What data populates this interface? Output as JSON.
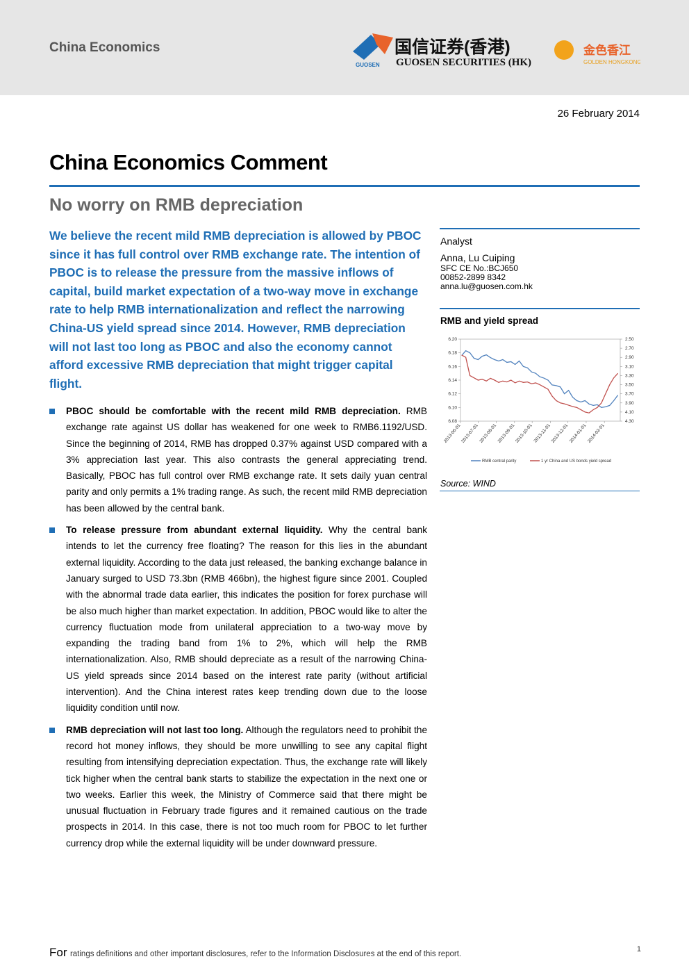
{
  "header": {
    "section": "China Economics",
    "logo_cn": "国信证券(香港)",
    "logo_en": "GUOSEN SECURITIES (HK)",
    "logo_mark": "GUOSEN",
    "partner_cn": "金色香江",
    "partner_en": "GOLDEN HONGKONG"
  },
  "date": "26 February 2014",
  "title": "China Economics Comment",
  "subtitle": "No worry on RMB depreciation",
  "summary": "We believe the recent mild RMB depreciation is allowed by PBOC since it has full control over RMB exchange rate. The intention of PBOC is to release the pressure from the massive inflows of capital, build market expectation of a two-way move in exchange rate to help RMB internationalization and reflect the narrowing China-US yield spread since 2014. However, RMB depreciation will not last too long as PBOC and also the economy cannot afford excessive RMB depreciation that might trigger capital flight.",
  "bullets": [
    {
      "lead": "PBOC should be comfortable with the recent mild RMB depreciation.",
      "text": "RMB exchange rate against US dollar has weakened for one week to RMB6.1192/USD. Since the beginning of 2014, RMB has dropped 0.37% against USD compared with a 3% appreciation last year. This also contrasts the general appreciating trend. Basically, PBOC has full control over RMB exchange rate. It sets daily yuan central parity and only permits a 1% trading range. As such, the recent mild RMB depreciation has been allowed by the central bank."
    },
    {
      "lead": "To release pressure from abundant external liquidity.",
      "text": "Why the central bank intends to let the currency free floating? The reason for this lies in the abundant external liquidity. According to the data just released, the banking exchange balance in January surged to USD 73.3bn (RMB 466bn), the highest figure since 2001. Coupled with the abnormal trade data earlier, this indicates the position for forex purchase will be also much higher than market expectation. In addition, PBOC would like to alter the currency fluctuation mode from unilateral appreciation to a two-way move by expanding the trading band from 1% to 2%, which will help the RMB internationalization. Also, RMB should depreciate as a result of the narrowing China-US yield spreads since 2014 based on the interest rate parity (without artificial intervention). And the China interest rates keep trending down due to the loose liquidity condition until now."
    },
    {
      "lead": "RMB depreciation will not last too long.",
      "text": "Although the regulators need to prohibit the record hot money inflows, they should be more unwilling to see any capital flight resulting from intensifying depreciation expectation. Thus, the exchange rate will likely tick higher when the central bank starts to stabilize the expectation in the next one or two weeks. Earlier this week, the Ministry of Commerce said that there might be unusual fluctuation in February trade figures and it remained cautious on the trade prospects in 2014. In this case, there is not too much room for PBOC to let further currency drop while the external liquidity will be under downward pressure."
    }
  ],
  "sidebar": {
    "heading": "Analyst",
    "name": "Anna, Lu Cuiping",
    "sfc": "SFC CE No.:BCJ650",
    "phone": "00852-2899 8342",
    "email": "anna.lu@guosen.com.hk"
  },
  "chart_data": {
    "type": "line",
    "title": "RMB and yield spread",
    "source": "Source: WIND",
    "x": [
      "2013-06-03",
      "2013-06-10",
      "2013-06-17",
      "2013-06-24",
      "2013-07-01",
      "2013-07-08",
      "2013-07-15",
      "2013-07-22",
      "2013-07-29",
      "2013-08-05",
      "2013-08-12",
      "2013-08-19",
      "2013-08-26",
      "2013-09-02",
      "2013-09-09",
      "2013-09-16",
      "2013-09-23",
      "2013-09-30",
      "2013-10-07",
      "2013-10-14",
      "2013-10-21",
      "2013-10-28",
      "2013-11-04",
      "2013-11-11",
      "2013-11-18",
      "2013-11-25",
      "2013-12-02",
      "2013-12-09",
      "2013-12-16",
      "2013-12-23",
      "2013-12-30",
      "2014-01-06",
      "2014-01-13",
      "2014-01-20",
      "2014-01-27",
      "2014-02-03",
      "2014-02-10",
      "2014-02-17",
      "2014-02-24"
    ],
    "series": [
      {
        "name": "RMB central parity",
        "color": "#4f81bd",
        "values": [
          6.176,
          6.183,
          6.18,
          6.172,
          6.17,
          6.175,
          6.177,
          6.173,
          6.17,
          6.168,
          6.17,
          6.166,
          6.167,
          6.163,
          6.168,
          6.16,
          6.158,
          6.152,
          6.15,
          6.145,
          6.143,
          6.14,
          6.133,
          6.132,
          6.13,
          6.12,
          6.125,
          6.115,
          6.11,
          6.108,
          6.11,
          6.105,
          6.103,
          6.104,
          6.1,
          6.101,
          6.103,
          6.11,
          6.118
        ]
      },
      {
        "name": "1 yr China and US bonds yield spread",
        "color": "#c0504d",
        "axis": "y2",
        "values": [
          2.85,
          2.9,
          3.3,
          3.35,
          3.4,
          3.38,
          3.42,
          3.36,
          3.4,
          3.45,
          3.42,
          3.44,
          3.4,
          3.46,
          3.42,
          3.45,
          3.44,
          3.48,
          3.46,
          3.5,
          3.55,
          3.6,
          3.75,
          3.85,
          3.9,
          3.92,
          3.95,
          3.98,
          4.0,
          4.05,
          4.1,
          4.12,
          4.05,
          4.0,
          3.9,
          3.7,
          3.5,
          3.35,
          3.25
        ]
      }
    ],
    "xlim": [
      "2013-06-01",
      "2014-02-28"
    ],
    "xticks": [
      "2013-06-01",
      "2013-07-01",
      "2013-08-01",
      "2013-09-01",
      "2013-10-01",
      "2013-11-01",
      "2013-12-01",
      "2014-01-01",
      "2014-02-01"
    ],
    "ylim": [
      6.08,
      6.2
    ],
    "yticks": [
      {
        "value": 6.2,
        "label": "6.20"
      },
      6.18,
      6.16,
      6.14,
      6.12,
      {
        "value": 6.1,
        "label": "6.10"
      },
      6.08
    ],
    "y2lim": [
      4.3,
      2.5
    ],
    "y2ticks": [
      {
        "value": 2.5,
        "label": "2.50"
      },
      {
        "value": 2.7,
        "label": "2.70"
      },
      {
        "value": 2.9,
        "label": "2.90"
      },
      {
        "value": 3.1,
        "label": "3.10"
      },
      {
        "value": 3.3,
        "label": "3.30"
      },
      {
        "value": 3.5,
        "label": "3.50"
      },
      {
        "value": 3.7,
        "label": "3.70"
      },
      {
        "value": 3.9,
        "label": "3.90"
      },
      {
        "value": 4.1,
        "label": "4.10"
      },
      {
        "value": 4.3,
        "label": "4.30"
      }
    ],
    "legend": "bottom"
  },
  "footer": {
    "lead": "For",
    "text": "ratings definitions and other important disclosures, refer to the Information Disclosures at the end of this report.",
    "page": "1"
  }
}
